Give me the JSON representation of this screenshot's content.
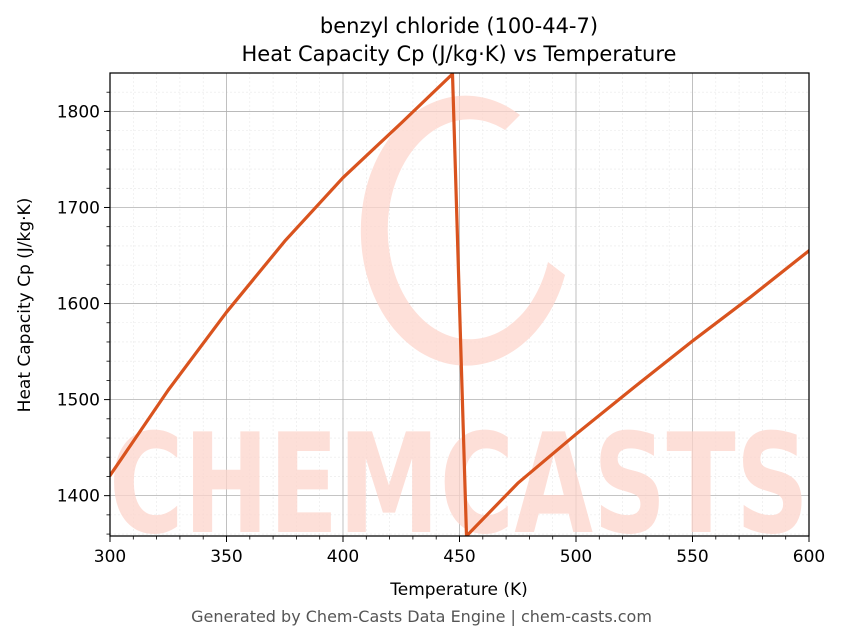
{
  "chart_data": {
    "type": "line",
    "title": "benzyl chloride (100-44-7)",
    "subtitle": "Heat Capacity Cp (J/kg·K) vs Temperature",
    "xlabel": "Temperature (K)",
    "ylabel": "Heat Capacity Cp (J/kg·K)",
    "xlim": [
      300,
      600
    ],
    "ylim": [
      1358,
      1840
    ],
    "x_ticks": [
      300,
      350,
      400,
      450,
      500,
      550,
      600
    ],
    "y_ticks": [
      1400,
      1500,
      1600,
      1700,
      1800
    ],
    "x_tick_labels": [
      "300",
      "350",
      "400",
      "450",
      "500",
      "550",
      "600"
    ],
    "y_tick_labels": [
      "1400",
      "1500",
      "1600",
      "1700",
      "1800"
    ],
    "grid": true,
    "line_color": "#d9531e",
    "series": [
      {
        "x": [
          300,
          325,
          350,
          375,
          400,
          425,
          447,
          453,
          475,
          500,
          525,
          550,
          575,
          600
        ],
        "y": [
          1421,
          1510,
          1591,
          1665,
          1731,
          1788,
          1839,
          1358,
          1413,
          1464,
          1513,
          1561,
          1607,
          1655
        ]
      }
    ]
  },
  "watermark": {
    "text": "CHEMCASTS",
    "color": "#fdd5cc"
  },
  "footer": "Generated by Chem-Casts Data Engine | chem-casts.com"
}
